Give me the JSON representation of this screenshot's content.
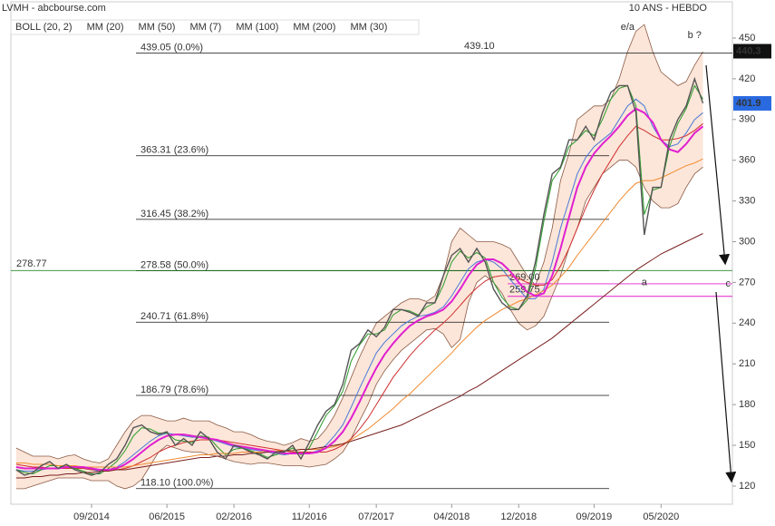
{
  "chart_data": {
    "type": "line",
    "title": "LVMH - abcbourse.com",
    "subtitle": "10 ANS - HEBDO",
    "categories": [
      null,
      null,
      null,
      null,
      null,
      null,
      null,
      null,
      null,
      "09/2014",
      null,
      null,
      null,
      null,
      null,
      null,
      null,
      null,
      "06/2015",
      null,
      null,
      null,
      null,
      null,
      null,
      null,
      "02/2016",
      null,
      null,
      null,
      null,
      null,
      null,
      null,
      null,
      "11/2016",
      null,
      null,
      null,
      null,
      null,
      null,
      null,
      "07/2017",
      null,
      null,
      null,
      null,
      null,
      null,
      null,
      null,
      "04/2018",
      null,
      null,
      null,
      null,
      null,
      null,
      null,
      "12/2018",
      null,
      null,
      null,
      null,
      null,
      null,
      null,
      null,
      "09/2019",
      null,
      null,
      null,
      null,
      null,
      null,
      null,
      "05/2020",
      null,
      null,
      null,
      null,
      null
    ],
    "values": [
      132,
      128,
      130,
      135,
      138,
      133,
      136,
      132,
      130,
      128,
      130,
      136,
      140,
      150,
      163,
      165,
      160,
      158,
      160,
      150,
      155,
      150,
      160,
      155,
      145,
      140,
      150,
      148,
      145,
      143,
      140,
      145,
      145,
      150,
      140,
      152,
      165,
      175,
      180,
      195,
      220,
      225,
      235,
      230,
      237,
      250,
      250,
      248,
      245,
      255,
      255,
      275,
      290,
      295,
      285,
      295,
      285,
      265,
      255,
      250,
      250,
      260,
      285,
      320,
      350,
      355,
      375,
      375,
      385,
      375,
      395,
      410,
      415,
      415,
      395,
      305,
      340,
      340,
      375,
      390,
      400,
      420,
      402
    ],
    "color": "#555555",
    "series": [
      {
        "name": "BOLL (20, 2)",
        "color": "#8a5a44",
        "values": [
          148,
          145,
          142,
          142,
          142,
          140,
          142,
          143,
          140,
          138,
          137,
          140,
          150,
          160,
          168,
          172,
          172,
          170,
          168,
          168,
          170,
          168,
          168,
          168,
          165,
          163,
          160,
          160,
          158,
          155,
          153,
          152,
          150,
          152,
          155,
          153,
          155,
          162,
          172,
          185,
          200,
          215,
          228,
          240,
          245,
          250,
          255,
          258,
          258,
          256,
          260,
          275,
          300,
          310,
          305,
          300,
          300,
          300,
          298,
          295,
          285,
          275,
          268,
          285,
          310,
          345,
          365,
          390,
          395,
          400,
          400,
          405,
          420,
          440,
          455,
          460,
          440,
          425,
          420,
          415,
          418,
          430,
          440
        ],
        "lower": [
          118,
          118,
          120,
          122,
          124,
          126,
          126,
          126,
          126,
          124,
          124,
          124,
          120,
          118,
          120,
          125,
          135,
          145,
          150,
          148,
          146,
          145,
          145,
          143,
          142,
          140,
          138,
          137,
          136,
          137,
          137,
          136,
          135,
          135,
          135,
          134,
          135,
          136,
          140,
          145,
          155,
          168,
          180,
          195,
          205,
          213,
          220,
          225,
          230,
          235,
          236,
          232,
          222,
          228,
          255,
          270,
          275,
          270,
          262,
          250,
          240,
          235,
          238,
          245,
          260,
          275,
          295,
          310,
          330,
          340,
          350,
          355,
          360,
          360,
          355,
          340,
          330,
          325,
          325,
          328,
          340,
          350,
          355
        ]
      },
      {
        "name": "MM (20)",
        "color": "#4a78d8",
        "values": [
          132,
          131,
          131,
          132,
          133,
          133,
          134,
          134,
          133,
          132,
          131,
          132,
          134,
          138,
          143,
          148,
          153,
          157,
          159,
          158,
          157,
          156,
          156,
          155,
          153,
          151,
          149,
          148,
          147,
          146,
          145,
          144,
          143,
          144,
          145,
          144,
          146,
          150,
          157,
          165,
          178,
          192,
          205,
          218,
          226,
          232,
          238,
          242,
          245,
          246,
          248,
          252,
          260,
          270,
          280,
          285,
          287,
          285,
          280,
          272,
          265,
          258,
          258,
          265,
          285,
          310,
          330,
          350,
          362,
          370,
          375,
          380,
          390,
          400,
          405,
          400,
          385,
          375,
          370,
          372,
          380,
          390,
          395
        ]
      },
      {
        "name": "MM (50)",
        "color": "#d03030",
        "values": [
          136,
          135,
          134,
          134,
          133,
          133,
          133,
          133,
          133,
          132,
          132,
          132,
          132,
          133,
          135,
          138,
          141,
          145,
          148,
          150,
          152,
          153,
          154,
          154,
          154,
          153,
          152,
          151,
          150,
          149,
          148,
          147,
          146,
          145,
          145,
          145,
          145,
          145,
          147,
          150,
          155,
          162,
          170,
          180,
          190,
          200,
          208,
          216,
          223,
          229,
          235,
          240,
          246,
          253,
          260,
          266,
          271,
          274,
          275,
          275,
          273,
          270,
          268,
          268,
          272,
          282,
          295,
          310,
          325,
          338,
          350,
          360,
          370,
          378,
          385,
          382,
          378,
          375,
          375,
          376,
          378,
          382,
          387
        ]
      },
      {
        "name": "MM (7)",
        "color": "#2a9a2a",
        "values": [
          132,
          130,
          129,
          132,
          135,
          135,
          134,
          133,
          131,
          129,
          129,
          133,
          138,
          146,
          157,
          163,
          162,
          159,
          159,
          154,
          153,
          152,
          157,
          156,
          149,
          143,
          147,
          148,
          146,
          144,
          141,
          143,
          145,
          148,
          143,
          148,
          160,
          172,
          179,
          190,
          212,
          224,
          232,
          232,
          235,
          246,
          250,
          249,
          246,
          252,
          255,
          268,
          285,
          293,
          288,
          292,
          288,
          270,
          259,
          252,
          250,
          257,
          280,
          315,
          345,
          354,
          370,
          375,
          382,
          378,
          390,
          405,
          413,
          415,
          400,
          320,
          338,
          340,
          370,
          387,
          398,
          415,
          405
        ]
      },
      {
        "name": "MM (100)",
        "color": "#f08a30",
        "values": [
          137,
          137,
          136,
          136,
          136,
          135,
          135,
          135,
          134,
          134,
          134,
          134,
          134,
          134,
          135,
          136,
          137,
          138,
          139,
          140,
          141,
          142,
          143,
          143,
          144,
          144,
          144,
          145,
          145,
          145,
          146,
          146,
          146,
          146,
          147,
          147,
          147,
          148,
          149,
          151,
          154,
          158,
          162,
          167,
          172,
          177,
          183,
          188,
          194,
          200,
          206,
          212,
          218,
          225,
          231,
          237,
          242,
          246,
          250,
          253,
          256,
          258,
          261,
          264,
          268,
          274,
          281,
          290,
          298,
          306,
          314,
          322,
          330,
          337,
          343,
          345,
          345,
          347,
          350,
          353,
          356,
          358,
          361
        ]
      },
      {
        "name": "MM (200)",
        "color": "#7a2020",
        "values": [
          126,
          126,
          127,
          127,
          128,
          128,
          129,
          129,
          130,
          130,
          131,
          131,
          132,
          132,
          133,
          134,
          135,
          136,
          137,
          138,
          139,
          140,
          141,
          141,
          142,
          142,
          143,
          143,
          144,
          144,
          145,
          145,
          146,
          146,
          147,
          147,
          148,
          149,
          150,
          151,
          153,
          155,
          157,
          159,
          161,
          163,
          165,
          168,
          171,
          174,
          177,
          180,
          183,
          186,
          190,
          193,
          197,
          201,
          205,
          209,
          213,
          217,
          221,
          225,
          229,
          234,
          239,
          244,
          249,
          254,
          259,
          264,
          269,
          274,
          279,
          283,
          287,
          291,
          294,
          297,
          300,
          303,
          306
        ]
      },
      {
        "name": "MM (30)",
        "color": "#e020d0",
        "values": [
          134,
          133,
          133,
          133,
          133,
          133,
          134,
          134,
          134,
          133,
          132,
          132,
          133,
          136,
          140,
          145,
          150,
          154,
          157,
          158,
          158,
          157,
          156,
          155,
          154,
          152,
          150,
          149,
          148,
          147,
          146,
          145,
          144,
          144,
          144,
          144,
          145,
          148,
          153,
          160,
          170,
          182,
          195,
          207,
          217,
          225,
          232,
          238,
          242,
          245,
          247,
          250,
          256,
          265,
          275,
          283,
          287,
          287,
          284,
          278,
          270,
          263,
          260,
          262,
          275,
          295,
          318,
          340,
          355,
          365,
          372,
          378,
          385,
          393,
          398,
          395,
          388,
          375,
          368,
          366,
          372,
          380,
          385
        ]
      }
    ],
    "ylim": [
      106.6,
      476.7
    ],
    "yticks": [
      450,
      420,
      390,
      360,
      330,
      300,
      270,
      240,
      210,
      180,
      150,
      120
    ],
    "fib_levels": [
      {
        "value": 439.05,
        "label": "439.05  (0.0%)"
      },
      {
        "value": 363.31,
        "label": "363.31  (23.6%)"
      },
      {
        "value": 316.45,
        "label": "316.45  (38.2%)"
      },
      {
        "value": 278.58,
        "label": "278.58  (50.0%)"
      },
      {
        "value": 240.71,
        "label": "240.71  (61.8%)"
      },
      {
        "value": 186.79,
        "label": "186.79  (78.6%)"
      },
      {
        "value": 118.1,
        "label": "118.10  (100.0%)"
      }
    ],
    "levels": [
      {
        "value": 278.77,
        "label": "278.77",
        "color": "#2a8a2a"
      },
      {
        "value": 269.0,
        "label": "269.00",
        "color": "#e020d0"
      },
      {
        "value": 259.75,
        "label": "259.75",
        "color": "#e020d0"
      }
    ],
    "high_label": {
      "value": 439.1,
      "label": "439.10"
    },
    "last_prices": [
      {
        "value": 440.3,
        "label": "440.3",
        "color": "#111111"
      },
      {
        "value": 401.9,
        "label": "401.9",
        "color": "#2a6ae0"
      }
    ],
    "waves": [
      {
        "label": "e/a",
        "value": 458,
        "index": 73,
        "color": "#1a1a80"
      },
      {
        "label": "b ?",
        "value": 452,
        "index": 81,
        "color": "#c02020"
      },
      {
        "label": "a",
        "value": 270,
        "index": 75,
        "color": "#c02020"
      },
      {
        "label": "c",
        "value": 269,
        "index": 85,
        "color": "#e020d0"
      }
    ]
  }
}
